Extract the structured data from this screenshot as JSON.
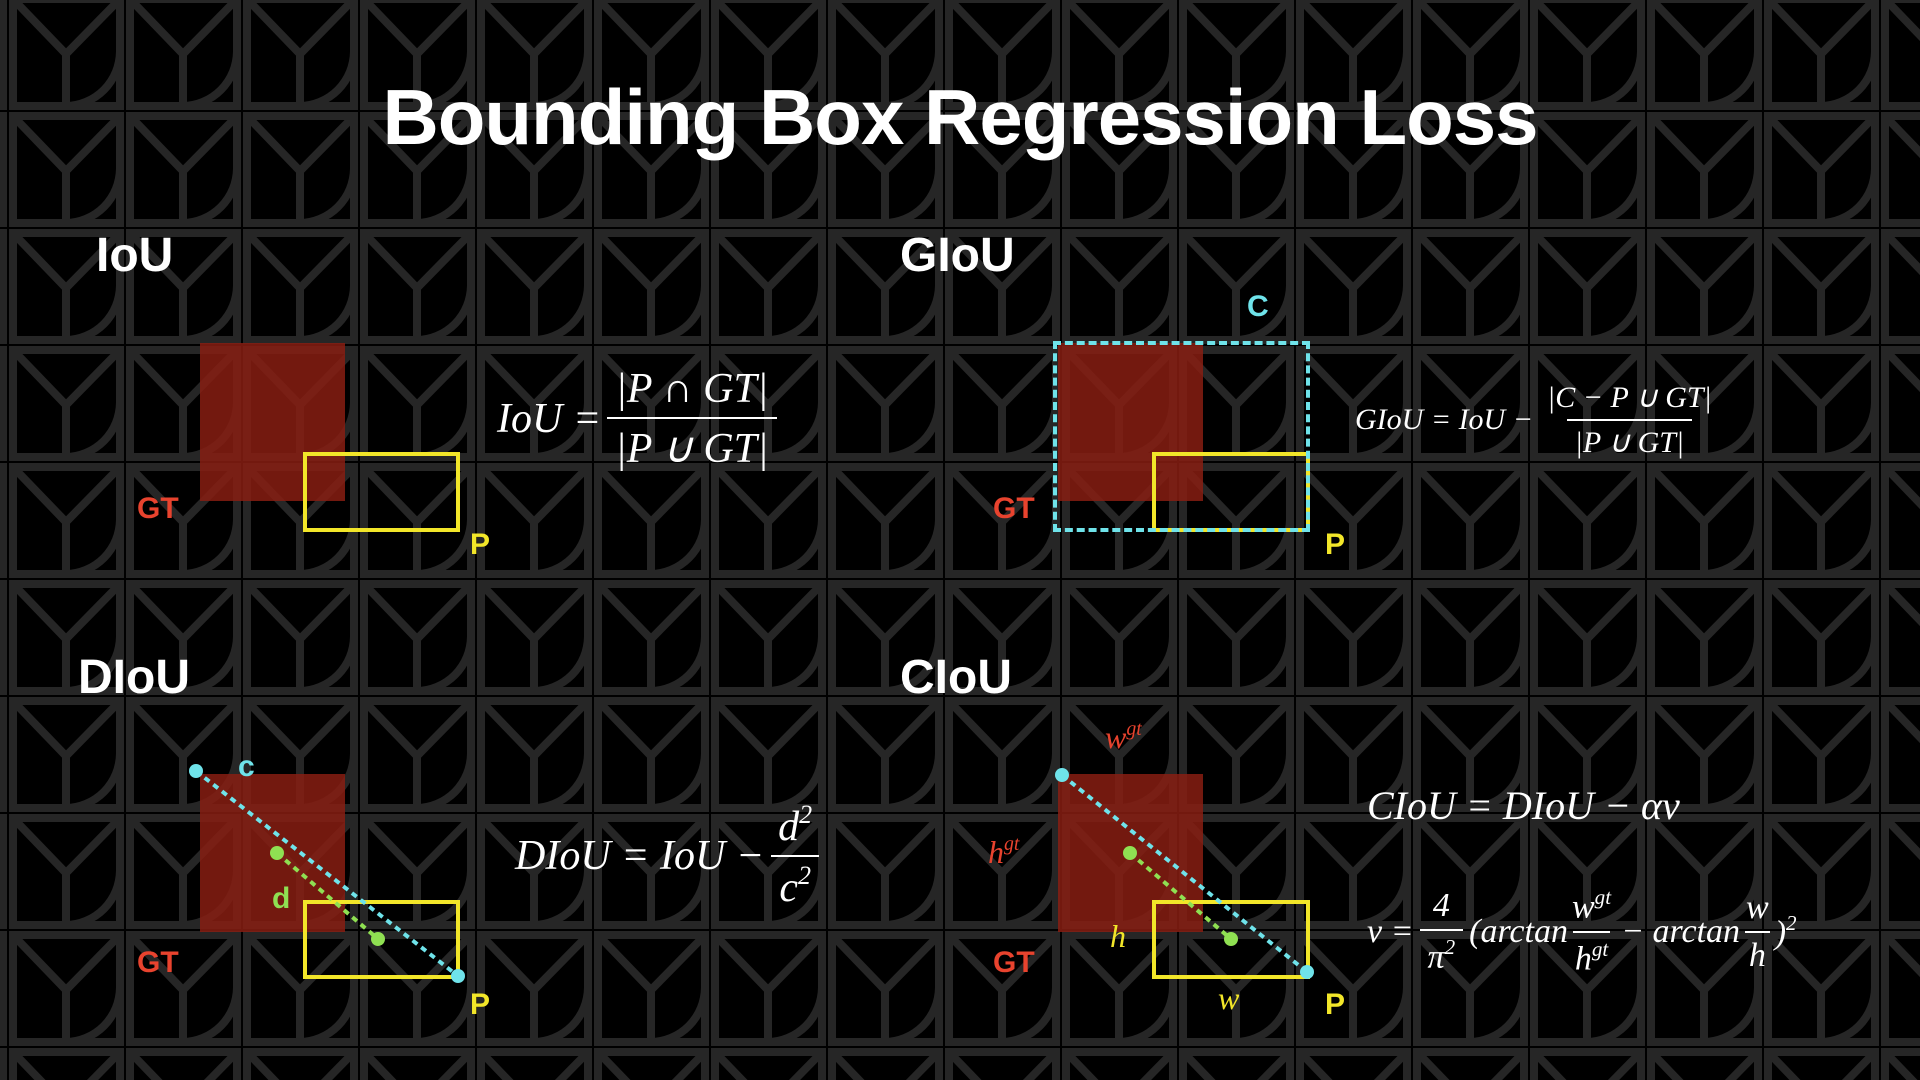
{
  "title": "Bounding Box Regression Loss",
  "sections": {
    "iou": {
      "heading": "IoU",
      "gt_label": "GT",
      "p_label": "P"
    },
    "giou": {
      "heading": "GIoU",
      "gt_label": "GT",
      "p_label": "P",
      "c_label": "C"
    },
    "diou": {
      "heading": "DIoU",
      "gt_label": "GT",
      "p_label": "P",
      "c_label": "c",
      "d_label": "d"
    },
    "ciou": {
      "heading": "CIoU",
      "gt_label": "GT",
      "p_label": "P",
      "w_gt_label": "w",
      "h_gt_label": "h",
      "gt_sup": "gt",
      "h_label": "h",
      "w_label": "w"
    }
  },
  "formulas": {
    "iou": {
      "lhs": "IoU =",
      "num": "|P ∩ GT|",
      "den": "|P ∪ GT|"
    },
    "giou": {
      "lhs": "GIoU = IoU −",
      "num": "|C − P ∪ GT|",
      "den": "|P ∪ GT|"
    },
    "diou": {
      "lhs": "DIoU = IoU −",
      "num": "d",
      "den": "c",
      "exp": "2"
    },
    "ciou": {
      "line1": "CIoU = DIoU − αv",
      "v_lhs": "v =",
      "v_num": "4",
      "v_den": "π",
      "v_den_exp": "2",
      "arctan": "(arctan",
      "minus_arctan": "− arctan",
      "w_gt": "w",
      "h_gt": "h",
      "gt": "gt",
      "w": "w",
      "h": "h",
      "close": ")",
      "close_exp": "2"
    }
  },
  "colors": {
    "gt_fill": "#8c1e12",
    "gt_label": "#e8432e",
    "prediction": "#f2e629",
    "enclosing": "#6fe3ea",
    "center_distance": "#8fe052"
  }
}
